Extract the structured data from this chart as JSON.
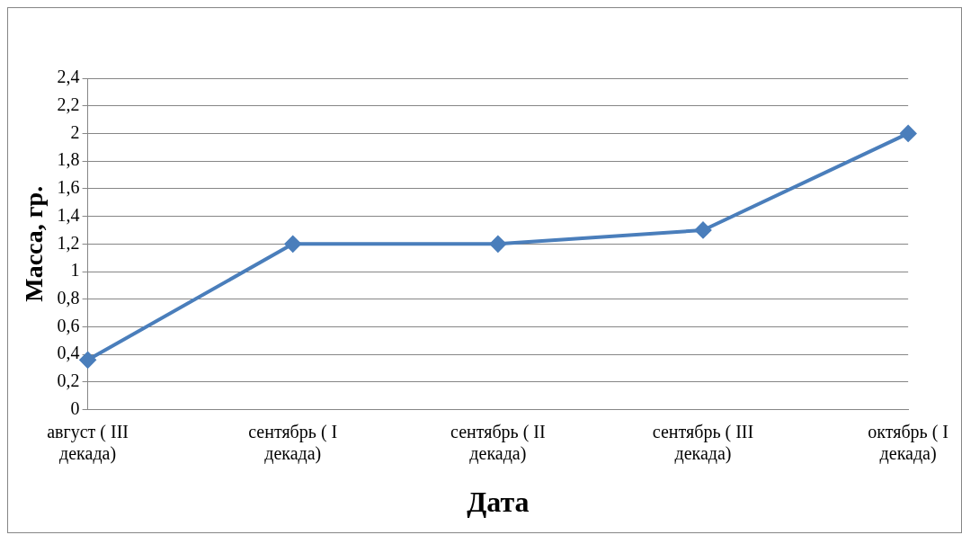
{
  "chart_data": {
    "type": "line",
    "xlabel": "Дата",
    "ylabel": "Масса, гр.",
    "categories": [
      "август ( III декада)",
      "сентябрь ( I декада)",
      "сентябрь ( II декада)",
      "сентябрь ( III декада)",
      "октябрь ( I декада)"
    ],
    "series": [
      {
        "color": "#4a7ebb",
        "values": [
          0.36,
          1.2,
          1.2,
          1.3,
          2
        ]
      }
    ],
    "ylim": [
      0,
      2.4
    ],
    "yticks": [
      0,
      {
        "value": 0.2,
        "label": "0,2"
      },
      {
        "value": 0.4,
        "label": "0,4"
      },
      {
        "value": 0.6,
        "label": "0,6"
      },
      {
        "value": 0.8,
        "label": "0,8"
      },
      1,
      {
        "value": 1.2,
        "label": "1,2"
      },
      {
        "value": 1.4,
        "label": "1,4"
      },
      {
        "value": 1.6,
        "label": "1,6"
      },
      {
        "value": 1.8,
        "label": "1,8"
      },
      2,
      {
        "value": 2.2,
        "label": "2,2"
      },
      {
        "value": 2.4,
        "label": "2,4"
      }
    ],
    "grid": "y",
    "marker": "diamond",
    "line_style": "solid",
    "legend": false
  }
}
